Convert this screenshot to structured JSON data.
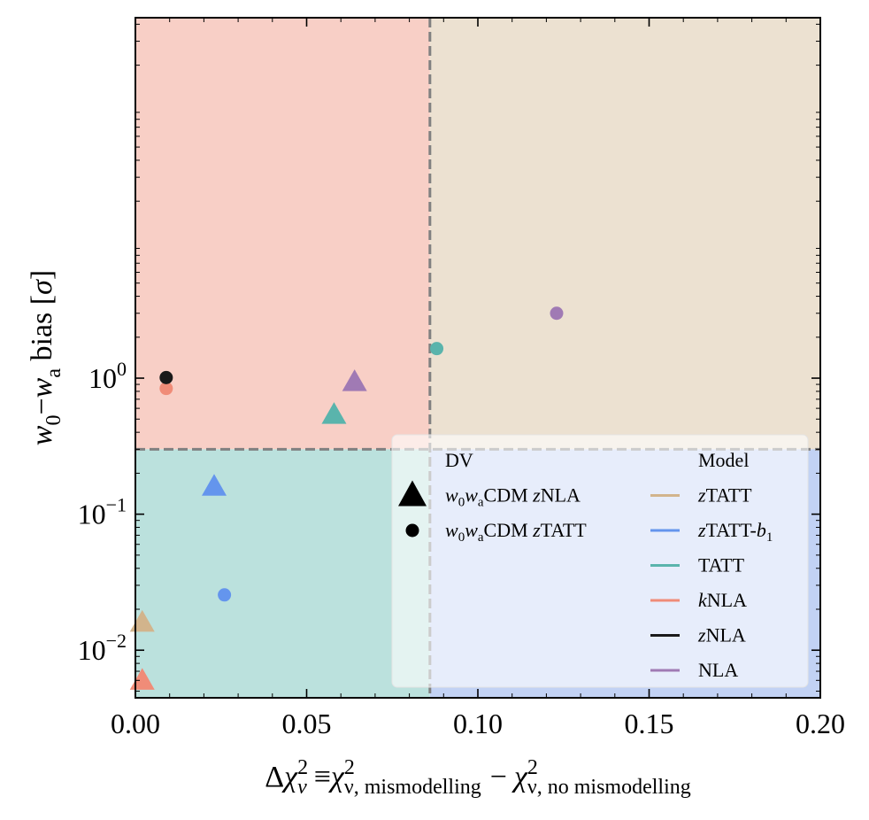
{
  "chart_data": {
    "type": "scatter",
    "xlabel_parts": {
      "delta": "Δ",
      "chi": "χ",
      "nu": "ν",
      "sq": "2",
      "equiv": "≡",
      "sub_mis": "ν, mismodelling",
      "minus": "−",
      "sub_nomis": "ν, no mismodelling"
    },
    "ylabel_parts": {
      "w0_w": "w",
      "w0_sub": "0",
      "dash": "−",
      "wa_w": "w",
      "wa_sub": "a",
      "bias": " bias [",
      "sigma": "σ",
      "close": "]"
    },
    "xlim": [
      0.0,
      0.2
    ],
    "ylim_log10": [
      -2.35,
      2.65
    ],
    "y_scale": "log",
    "x_ticks": [
      {
        "value": 0.0,
        "label": "0.00"
      },
      {
        "value": 0.05,
        "label": "0.05"
      },
      {
        "value": 0.1,
        "label": "0.10"
      },
      {
        "value": 0.15,
        "label": "0.15"
      },
      {
        "value": 0.2,
        "label": "0.20"
      }
    ],
    "y_ticks": [
      {
        "exp": 0,
        "base": "10",
        "sup": "0"
      },
      {
        "exp": -1,
        "base": "10",
        "sup": "−1"
      },
      {
        "exp": -2,
        "base": "10",
        "sup": "−2"
      }
    ],
    "threshold_x": 0.086,
    "threshold_y": 0.3,
    "regions": {
      "top_left": "#f8cfc6",
      "top_right": "#ece1d1",
      "bottom_left": "#bbe1dd",
      "bottom_right": "#c2d2f4"
    },
    "models": [
      {
        "name": "zTATT",
        "color": "#d2b48c"
      },
      {
        "name": "zTATT-b1",
        "color": "#6495ed"
      },
      {
        "name": "TATT",
        "color": "#5ab4ac"
      },
      {
        "name": "kNLA",
        "color": "#f08c78"
      },
      {
        "name": "zNLA",
        "color": "#1a1a1a"
      },
      {
        "name": "NLA",
        "color": "#a07ab4"
      }
    ],
    "points": [
      {
        "model": "zTATT",
        "marker": "triangle",
        "x": 0.002,
        "y": 0.016
      },
      {
        "model": "zTATT-b1",
        "marker": "triangle",
        "x": 0.023,
        "y": 0.16
      },
      {
        "model": "TATT",
        "marker": "triangle",
        "x": 0.058,
        "y": 0.54
      },
      {
        "model": "kNLA",
        "marker": "triangle",
        "x": 0.002,
        "y": 0.006
      },
      {
        "model": "NLA",
        "marker": "triangle",
        "x": 0.064,
        "y": 0.94
      },
      {
        "model": "zTATT-b1",
        "marker": "circle",
        "x": 0.026,
        "y": 0.0255
      },
      {
        "model": "TATT",
        "marker": "circle",
        "x": 0.088,
        "y": 1.65
      },
      {
        "model": "kNLA",
        "marker": "circle",
        "x": 0.009,
        "y": 0.84
      },
      {
        "model": "zNLA",
        "marker": "circle",
        "x": 0.009,
        "y": 1.01
      },
      {
        "model": "NLA",
        "marker": "circle",
        "x": 0.123,
        "y": 3.0
      }
    ],
    "legend": {
      "position": "lower-right",
      "dv_title": "DV",
      "model_title": "Model",
      "dv_entries": [
        {
          "marker": "triangle",
          "parts": [
            "w",
            "0",
            "w",
            "a",
            "CDM ",
            "z",
            "NLA"
          ]
        },
        {
          "marker": "circle",
          "parts": [
            "w",
            "0",
            "w",
            "a",
            "CDM ",
            "z",
            "TATT"
          ]
        }
      ],
      "model_entries": [
        {
          "color": "#d2b48c",
          "parts": [
            "z",
            "TATT"
          ]
        },
        {
          "color": "#6495ed",
          "parts": [
            "z",
            "TATT-",
            "b",
            "1"
          ]
        },
        {
          "color": "#5ab4ac",
          "parts": [
            "",
            "TATT"
          ]
        },
        {
          "color": "#f08c78",
          "parts": [
            "k",
            "NLA"
          ]
        },
        {
          "color": "#1a1a1a",
          "parts": [
            "z",
            "NLA"
          ]
        },
        {
          "color": "#a07ab4",
          "parts": [
            "",
            "NLA"
          ]
        }
      ]
    }
  }
}
